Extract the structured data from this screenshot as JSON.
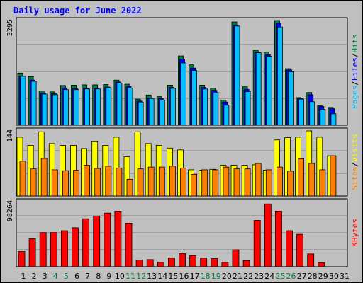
{
  "chart_data": {
    "type": "bar",
    "title": "Daily usage for June 2022",
    "categories": [
      "1",
      "2",
      "3",
      "4",
      "5",
      "6",
      "7",
      "8",
      "9",
      "10",
      "11",
      "12",
      "13",
      "14",
      "15",
      "16",
      "17",
      "18",
      "19",
      "20",
      "21",
      "22",
      "23",
      "24",
      "25",
      "26",
      "27",
      "28",
      "29",
      "30",
      "31"
    ],
    "weekend_days": [
      "4",
      "5",
      "11",
      "12",
      "18",
      "19",
      "25",
      "26"
    ],
    "colors": {
      "hits": "#008040",
      "files": "#0000ff",
      "pages": "#00c0ff",
      "visits": "#ffff00",
      "sites": "#ff8000",
      "kbytes": "#ff0000",
      "weekday_label": "#000000",
      "weekend_label": "#008040",
      "title": "#0000ff",
      "grid": "#808080",
      "plot_bg": "#c0c0c0"
    },
    "panels": [
      {
        "id": "hits-files-pages",
        "max_label": "3295",
        "ylim": [
          0,
          3295
        ],
        "right_labels": [
          {
            "text": "Pages",
            "color": "#00c0ff"
          },
          {
            "text": "/",
            "color": "#000000"
          },
          {
            "text": "Files",
            "color": "#0000ff"
          },
          {
            "text": "/",
            "color": "#000000"
          },
          {
            "text": "Hits",
            "color": "#008040"
          }
        ],
        "series": [
          {
            "name": "Hits",
            "color": "#008040",
            "values": [
              1640,
              1530,
              1080,
              1050,
              1250,
              1260,
              1270,
              1270,
              1280,
              1420,
              1290,
              820,
              950,
              900,
              1260,
              2180,
              1900,
              1260,
              1170,
              790,
              3250,
              1210,
              2360,
              2300,
              3320,
              1780,
              870,
              1030,
              620,
              560,
              0
            ]
          },
          {
            "name": "Files",
            "color": "#0000ff",
            "values": [
              1540,
              1420,
              1010,
              990,
              1170,
              1150,
              1160,
              1160,
              1200,
              1360,
              1220,
              760,
              860,
              840,
              1190,
              2080,
              1800,
              1190,
              1100,
              730,
              3150,
              1130,
              2290,
              2220,
              3210,
              1740,
              840,
              960,
              590,
              520,
              0
            ]
          },
          {
            "name": "Pages",
            "color": "#00c0ff",
            "values": [
              1540,
              1380,
              980,
              960,
              1120,
              1120,
              1140,
              1140,
              1180,
              1330,
              1170,
              730,
              840,
              790,
              1160,
              1960,
              1720,
              1140,
              1040,
              630,
              3120,
              1060,
              2280,
              2170,
              3090,
              1680,
              820,
              740,
              500,
              360,
              0
            ]
          }
        ]
      },
      {
        "id": "visits-sites",
        "max_label": "144",
        "ylim": [
          0,
          144
        ],
        "right_labels": [
          {
            "text": "Sites",
            "color": "#ff8000"
          },
          {
            "text": "/",
            "color": "#000000"
          },
          {
            "text": "Visits",
            "color": "#ffff00"
          }
        ],
        "series": [
          {
            "name": "Visits",
            "color": "#ffff00",
            "values": [
              130,
              112,
              142,
              116,
              112,
              112,
              105,
              120,
              112,
              130,
              87,
              142,
              116,
              112,
              106,
              102,
              58,
              57,
              59,
              68,
              68,
              68,
              69,
              57,
              124,
              129,
              130,
              144,
              130,
              89,
              0
            ]
          },
          {
            "name": "Sites",
            "color": "#ff8000",
            "values": [
              77,
              60,
              83,
              58,
              56,
              57,
              68,
              61,
              66,
              62,
              37,
              60,
              64,
              64,
              66,
              62,
              48,
              58,
              58,
              64,
              60,
              60,
              72,
              58,
              64,
              55,
              82,
              72,
              58,
              89,
              0
            ]
          }
        ]
      },
      {
        "id": "kbytes",
        "max_label": "98264",
        "ylim": [
          0,
          98264
        ],
        "right_labels": [
          {
            "text": "KBytes",
            "color": "#ff0000"
          }
        ],
        "series": [
          {
            "name": "KBytes",
            "color": "#ff0000",
            "values": [
              22900,
              42100,
              51600,
              51600,
              54400,
              58900,
              72400,
              76500,
              81000,
              83800,
              65800,
              10000,
              10800,
              6700,
              13100,
              19700,
              16800,
              13100,
              12200,
              6700,
              25600,
              9200,
              70000,
              94800,
              84000,
              54400,
              49000,
              19400,
              6300,
              0,
              0
            ]
          }
        ]
      }
    ]
  }
}
